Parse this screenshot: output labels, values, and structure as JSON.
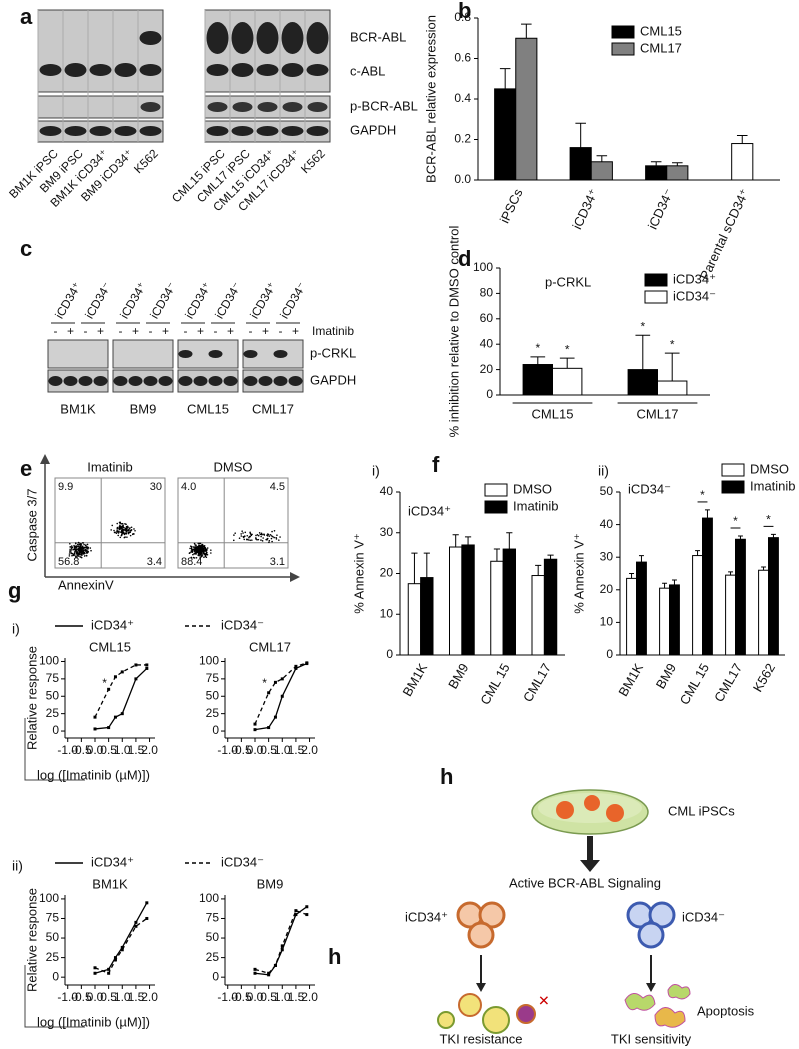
{
  "panel_labels": [
    "a",
    "b",
    "c",
    "d",
    "e",
    "f",
    "g",
    "h",
    "h"
  ],
  "blot_a": {
    "rows": [
      "BCR-ABL",
      "c-ABL",
      "p-BCR-ABL",
      "GAPDH"
    ],
    "left_lanes": [
      "BM1K iPSC",
      "BM9 iPSC",
      "BM1K iCD34⁺",
      "BM9 iCD34⁺",
      "K562"
    ],
    "right_lanes": [
      "CML15 iPSC",
      "CML17 iPSC",
      "CML15 iCD34⁺",
      "CML17 iCD34⁺",
      "K562"
    ]
  },
  "blot_c": {
    "lane_groups": [
      "iCD34⁺",
      "iCD34⁻",
      "iCD34⁺",
      "iCD34⁻",
      "iCD34⁺",
      "iCD34⁻",
      "iCD34⁺",
      "iCD34⁻"
    ],
    "treatment": [
      "-",
      "+",
      "-",
      "+",
      "-",
      "+",
      "-",
      "+",
      "-",
      "+",
      "-",
      "+",
      "-",
      "+",
      "-",
      "+"
    ],
    "treatment_label": "Imatinib",
    "rows": [
      "p-CRKL",
      "GAPDH"
    ],
    "samples": [
      "BM1K",
      "BM9",
      "CML15",
      "CML17"
    ]
  },
  "flow_e": {
    "y_label": "Caspase 3/7",
    "x_label": "AnnexinV",
    "plots": [
      {
        "title": "Imatinib",
        "quadrants": [
          "9.9",
          "30",
          "56.8",
          "3.4"
        ]
      },
      {
        "title": "DMSO",
        "quadrants": [
          "4.0",
          "4.5",
          "88.4",
          "3.1"
        ]
      }
    ]
  },
  "chart_data": [
    {
      "type": "bar",
      "y_label": "BCR-ABL relative expression",
      "categories": [
        "iPSCs",
        "iCD34⁺",
        "iCD34⁻",
        "Parental sCD34⁺"
      ],
      "series": [
        {
          "name": "CML15",
          "color": "#000000",
          "values": [
            0.45,
            0.16,
            0.07,
            null
          ],
          "errors": [
            0.1,
            0.12,
            0.02,
            null
          ]
        },
        {
          "name": "CML17",
          "color": "#808080",
          "values": [
            0.7,
            0.09,
            0.07,
            null
          ],
          "errors": [
            0.07,
            0.03,
            0.015,
            null
          ]
        },
        {
          "color": "#ffffff",
          "values": [
            null,
            null,
            null,
            0.18
          ],
          "errors": [
            null,
            null,
            null,
            0.04
          ]
        }
      ],
      "ylim": [
        0,
        0.8
      ],
      "yticks": [
        {
          "value": 0,
          "label": "0.0"
        },
        0.2,
        0.4,
        0.6,
        0.8
      ]
    },
    {
      "type": "bar",
      "title": "p-CRKL",
      "y_label": "% inhibition relative to DMSO control",
      "categories": [
        "CML15",
        "CML17"
      ],
      "series": [
        {
          "name": "iCD34⁺",
          "color": "#000000",
          "values": [
            24,
            20
          ],
          "errors": [
            6,
            27
          ]
        },
        {
          "name": "iCD34⁻",
          "color": "#ffffff",
          "values": [
            21,
            11
          ],
          "errors": [
            8,
            22
          ]
        }
      ],
      "ylim": [
        0,
        100
      ],
      "yticks": [
        0,
        20,
        40,
        60,
        80,
        100
      ],
      "annotations": [
        "*",
        "*",
        "*",
        "*"
      ]
    },
    {
      "type": "bar",
      "panel_index": "i)",
      "title": "iCD34⁺",
      "y_label": "% Annexin V⁺",
      "categories": [
        "BM1K",
        "BM9",
        "CML 15",
        "CML17"
      ],
      "series": [
        {
          "name": "DMSO",
          "color": "#ffffff",
          "values": [
            17.5,
            26.5,
            23,
            19.5
          ],
          "errors": [
            7.5,
            3,
            3,
            2.5
          ]
        },
        {
          "name": "Imatinib",
          "color": "#000000",
          "values": [
            19,
            27,
            26,
            23.5
          ],
          "errors": [
            6,
            2,
            4,
            1
          ]
        }
      ],
      "ylim": [
        0,
        40
      ],
      "yticks": [
        0,
        10,
        20,
        30,
        40
      ]
    },
    {
      "type": "bar",
      "panel_index": "ii)",
      "title": "iCD34⁻",
      "y_label": "% Annexin V⁺",
      "categories": [
        "BM1K",
        "BM9",
        "CML 15",
        "CML17",
        "K562"
      ],
      "series": [
        {
          "name": "DMSO",
          "color": "#ffffff",
          "values": [
            23.5,
            20.5,
            30.5,
            24.5,
            26
          ],
          "errors": [
            1.5,
            1.5,
            1.5,
            1,
            1
          ]
        },
        {
          "name": "Imatinib",
          "color": "#000000",
          "values": [
            28.5,
            21.5,
            42,
            35.5,
            36
          ],
          "errors": [
            2,
            1.5,
            2.5,
            1,
            1
          ]
        }
      ],
      "ylim": [
        0,
        50
      ],
      "yticks": [
        0,
        10,
        20,
        30,
        40,
        50
      ],
      "annotations": [
        "*",
        "*",
        "*"
      ]
    },
    {
      "type": "line",
      "panel_index": "i)",
      "title": "CML15",
      "y_label": "Relative response",
      "x_label": "log ([Imatinib (µM)])",
      "x": [
        0,
        0.5,
        0.75,
        1,
        1.5,
        1.9
      ],
      "series": [
        {
          "name": "iCD34⁺",
          "color": "#000000",
          "line_style": "solid",
          "values": [
            3,
            5,
            20,
            25,
            75,
            90
          ]
        },
        {
          "name": "iCD34⁻",
          "color": "#000000",
          "line_style": "dashed",
          "values": [
            20,
            60,
            78,
            85,
            95,
            95
          ]
        }
      ],
      "xlim": [
        -1.1,
        2.2
      ],
      "ylim": [
        -10,
        105
      ],
      "xticks": [
        {
          "value": -1,
          "label": "-1.0"
        },
        {
          "value": -0.5,
          "label": "-0.5"
        },
        {
          "value": 0,
          "label": "0.0"
        },
        {
          "value": 0.5,
          "label": "0.5"
        },
        {
          "value": 1,
          "label": "1.0"
        },
        {
          "value": 1.5,
          "label": "1.5"
        },
        {
          "value": 2,
          "label": "2.0"
        }
      ],
      "yticks": [
        0,
        25,
        50,
        75,
        100
      ],
      "annotations": [
        "*"
      ]
    },
    {
      "type": "line",
      "title": "CML17",
      "x": [
        0,
        0.5,
        0.75,
        1,
        1.5,
        1.9
      ],
      "series": [
        {
          "color": "#000000",
          "line_style": "solid",
          "values": [
            2,
            5,
            20,
            50,
            90,
            97
          ]
        },
        {
          "color": "#000000",
          "line_style": "dashed",
          "values": [
            10,
            55,
            70,
            75,
            93,
            98
          ]
        }
      ],
      "xlim": [
        -1.1,
        2.2
      ],
      "ylim": [
        -10,
        105
      ],
      "xticks": [
        {
          "value": -1,
          "label": "-1.0"
        },
        {
          "value": -0.5,
          "label": "-0.5"
        },
        {
          "value": 0,
          "label": "0.0"
        },
        {
          "value": 0.5,
          "label": "0.5"
        },
        {
          "value": 1,
          "label": "1.0"
        },
        {
          "value": 1.5,
          "label": "1.5"
        },
        {
          "value": 2,
          "label": "2.0"
        }
      ],
      "yticks": [
        0,
        25,
        50,
        75,
        100
      ],
      "annotations": [
        "*"
      ]
    },
    {
      "type": "line",
      "panel_index": "ii)",
      "title": "BM1K",
      "y_label": "Relative response",
      "x_label": "log ([Imatinib (µM)])",
      "x": [
        0,
        0.5,
        0.75,
        1,
        1.5,
        1.9
      ],
      "series": [
        {
          "name": "iCD34⁺",
          "color": "#000000",
          "line_style": "solid",
          "values": [
            5,
            10,
            25,
            38,
            70,
            95
          ]
        },
        {
          "name": "iCD34⁻",
          "color": "#000000",
          "line_style": "dashed",
          "values": [
            12,
            5,
            22,
            35,
            65,
            75
          ]
        }
      ],
      "xlim": [
        -1.1,
        2.2
      ],
      "ylim": [
        -10,
        105
      ],
      "xticks": [
        {
          "value": -1,
          "label": "-1.0"
        },
        {
          "value": -0.5,
          "label": "-0.5"
        },
        {
          "value": 0,
          "label": "0.0"
        },
        {
          "value": 0.5,
          "label": "0.5"
        },
        {
          "value": 1,
          "label": "1.0"
        },
        {
          "value": 1.5,
          "label": "1.5"
        },
        {
          "value": 2,
          "label": "2.0"
        }
      ],
      "yticks": [
        0,
        25,
        50,
        75,
        100
      ]
    },
    {
      "type": "line",
      "title": "BM9",
      "x": [
        0,
        0.5,
        0.75,
        1,
        1.5,
        1.9
      ],
      "series": [
        {
          "color": "#000000",
          "line_style": "solid",
          "values": [
            5,
            3,
            15,
            35,
            80,
            90
          ]
        },
        {
          "color": "#000000",
          "line_style": "dashed",
          "values": [
            10,
            5,
            15,
            40,
            85,
            80
          ]
        }
      ],
      "xlim": [
        -1.1,
        2.2
      ],
      "ylim": [
        -10,
        105
      ],
      "xticks": [
        {
          "value": -1,
          "label": "-1.0"
        },
        {
          "value": -0.5,
          "label": "-0.5"
        },
        {
          "value": 0,
          "label": "0.0"
        },
        {
          "value": 0.5,
          "label": "0.5"
        },
        {
          "value": 1,
          "label": "1.0"
        },
        {
          "value": 1.5,
          "label": "1.5"
        },
        {
          "value": 2,
          "label": "2.0"
        }
      ],
      "yticks": [
        0,
        25,
        50,
        75,
        100
      ]
    }
  ],
  "diagram_h": {
    "dish": "CML iPSCs",
    "signal": "Active BCR-ABL Signaling",
    "left_cells": "iCD34⁺",
    "right_cells": "iCD34⁻",
    "apoptosis": "Apoptosis",
    "left_outcome": "TKI resistance",
    "right_outcome": "TKI sensitivity"
  }
}
